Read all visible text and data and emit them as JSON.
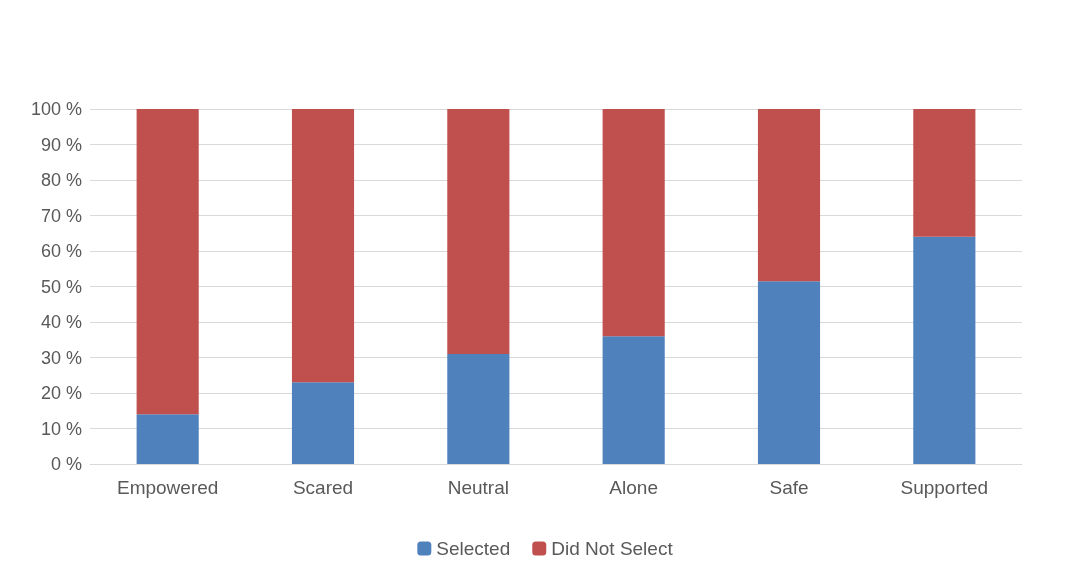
{
  "chart_data": {
    "type": "bar",
    "stacked": true,
    "categories": [
      "Empowered",
      "Scared",
      "Neutral",
      "Alone",
      "Safe",
      "Supported"
    ],
    "series": [
      {
        "name": "Selected",
        "color": "#4f81bd",
        "values": [
          14,
          23,
          31,
          36,
          51.5,
          64
        ]
      },
      {
        "name": "Did Not Select",
        "color": "#c0504d",
        "values": [
          86,
          77,
          69,
          64,
          48.5,
          36
        ]
      }
    ],
    "ylim": [
      0,
      100
    ],
    "yticks": [
      {
        "value": 0,
        "label": "0 %"
      },
      {
        "value": 10,
        "label": "10 %"
      },
      {
        "value": 20,
        "label": "20 %"
      },
      {
        "value": 30,
        "label": "30 %"
      },
      {
        "value": 40,
        "label": "40 %"
      },
      {
        "value": 50,
        "label": "50 %"
      },
      {
        "value": 60,
        "label": "60 %"
      },
      {
        "value": 70,
        "label": "70 %"
      },
      {
        "value": 80,
        "label": "80 %"
      },
      {
        "value": 90,
        "label": "90 %"
      },
      {
        "value": 100,
        "label": "100 %"
      }
    ],
    "grid": "y",
    "legend": "bottom"
  }
}
